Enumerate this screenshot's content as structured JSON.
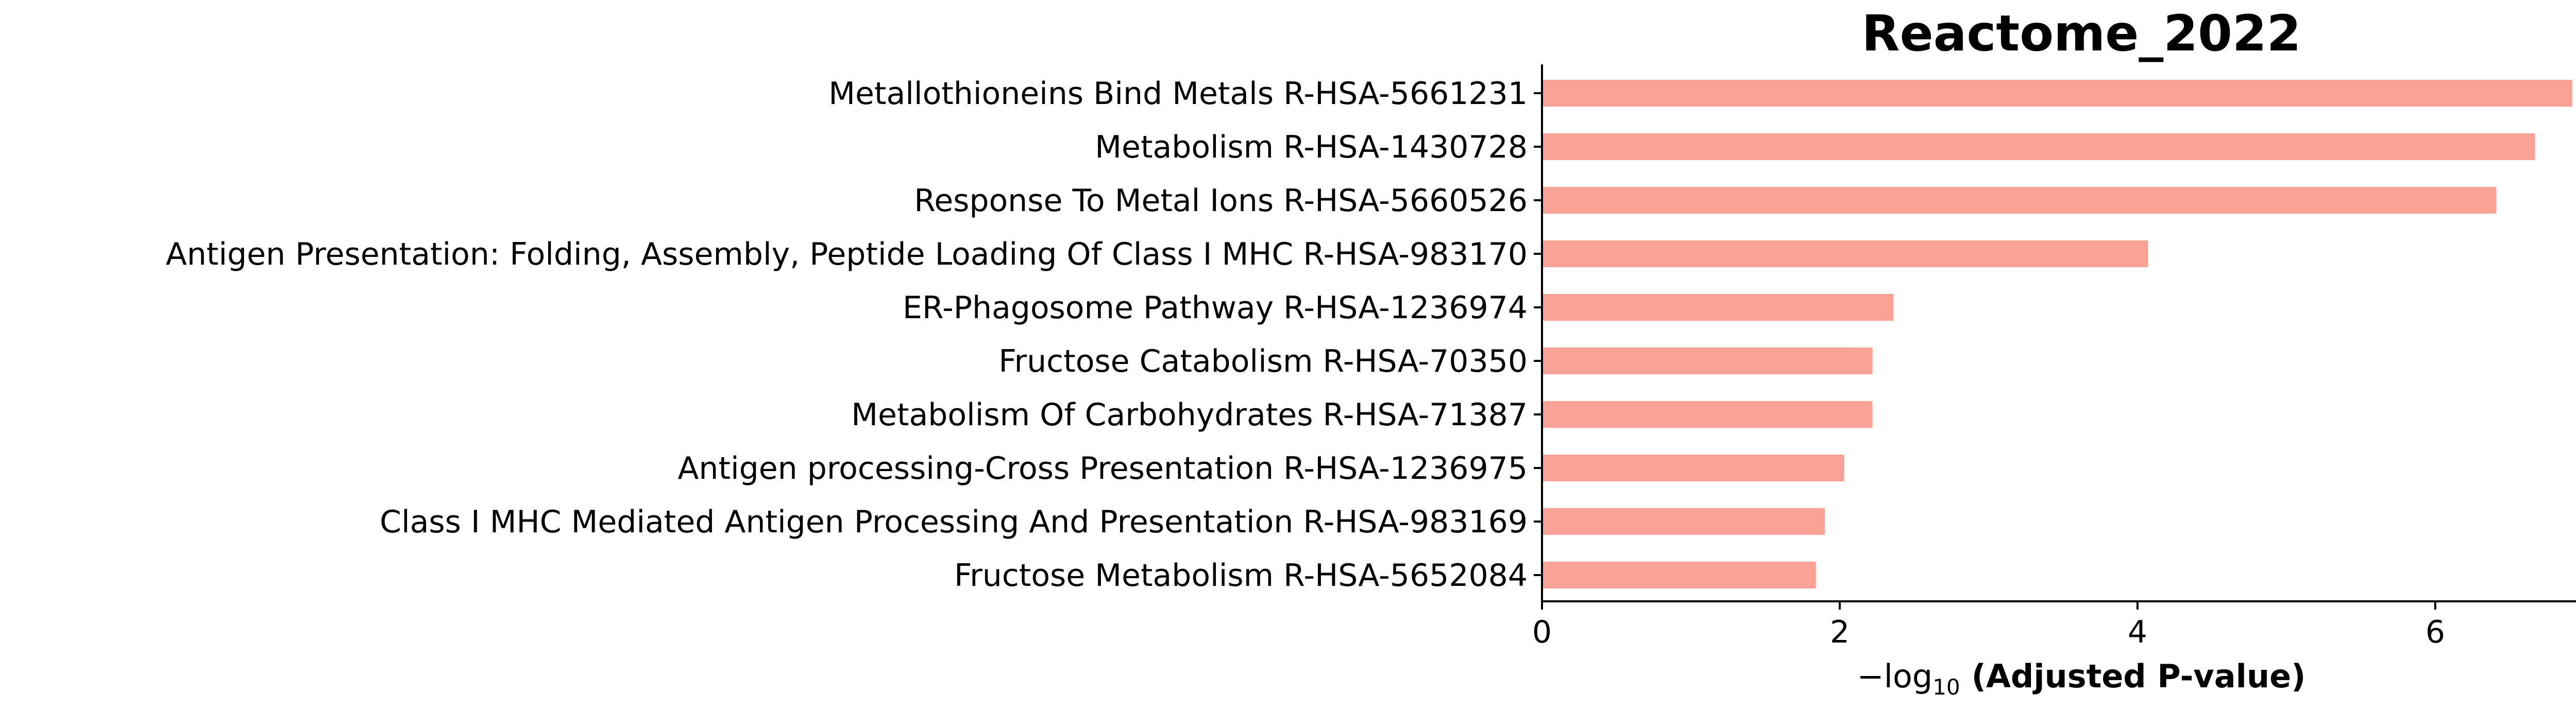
{
  "chart_data": {
    "type": "bar",
    "orientation": "horizontal",
    "title": "Reactome_2022",
    "xlabel": {
      "prefix": "−log",
      "subscript": "10",
      "bold": "(Adjusted P-value)"
    },
    "ylabel": "",
    "xlim": [
      0,
      7.25
    ],
    "xticks": [
      0,
      2,
      4,
      6
    ],
    "grid": false,
    "legend": "none",
    "bar_color": "#fba195",
    "categories": [
      "Metallothioneins Bind Metals R-HSA-5661231",
      "Metabolism R-HSA-1430728",
      "Response To Metal Ions R-HSA-5660526",
      "Antigen Presentation: Folding, Assembly, Peptide Loading Of Class I MHC R-HSA-983170",
      "ER-Phagosome Pathway R-HSA-1236974",
      "Fructose Catabolism R-HSA-70350",
      "Metabolism Of Carbohydrates R-HSA-71387",
      "Antigen processing-Cross Presentation R-HSA-1236975",
      "Class I MHC Mediated Antigen Processing And Presentation R-HSA-983169",
      "Fructose Metabolism R-HSA-5652084"
    ],
    "values": [
      6.92,
      6.67,
      6.41,
      4.07,
      2.36,
      2.22,
      2.22,
      2.03,
      1.9,
      1.84
    ]
  }
}
